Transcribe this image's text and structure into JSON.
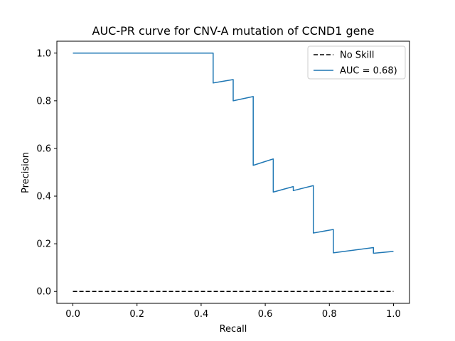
{
  "chart_data": {
    "type": "line",
    "title": "AUC-PR curve for CNV-A mutation of CCND1 gene",
    "xlabel": "Recall",
    "ylabel": "Precision",
    "xlim": [
      -0.05,
      1.05
    ],
    "ylim": [
      -0.05,
      1.05
    ],
    "xticks": [
      0.0,
      0.2,
      0.4,
      0.6,
      0.8,
      1.0
    ],
    "xtick_labels": [
      "0.0",
      "0.2",
      "0.4",
      "0.6",
      "0.8",
      "1.0"
    ],
    "yticks": [
      0.0,
      0.2,
      0.4,
      0.6,
      0.8,
      1.0
    ],
    "ytick_labels": [
      "0.0",
      "0.2",
      "0.4",
      "0.6",
      "0.8",
      "1.0"
    ],
    "grid": false,
    "legend_placement": "upper right",
    "series": [
      {
        "name": "No Skill",
        "color": "#000000",
        "style": "dashed",
        "x": [
          0.0,
          1.0
        ],
        "y": [
          0.0,
          0.0
        ]
      },
      {
        "name": "AUC = 0.68)",
        "color": "#1f77b4",
        "style": "solid",
        "x": [
          0.0,
          0.4375,
          0.4375,
          0.5,
          0.5,
          0.5625,
          0.5625,
          0.625,
          0.625,
          0.6875,
          0.6875,
          0.75,
          0.75,
          0.8125,
          0.8125,
          0.9375,
          0.9375,
          1.0
        ],
        "y": [
          1.0,
          1.0,
          0.875,
          0.889,
          0.8,
          0.818,
          0.529,
          0.556,
          0.417,
          0.44,
          0.423,
          0.444,
          0.245,
          0.26,
          0.162,
          0.184,
          0.16,
          0.168
        ]
      }
    ]
  }
}
